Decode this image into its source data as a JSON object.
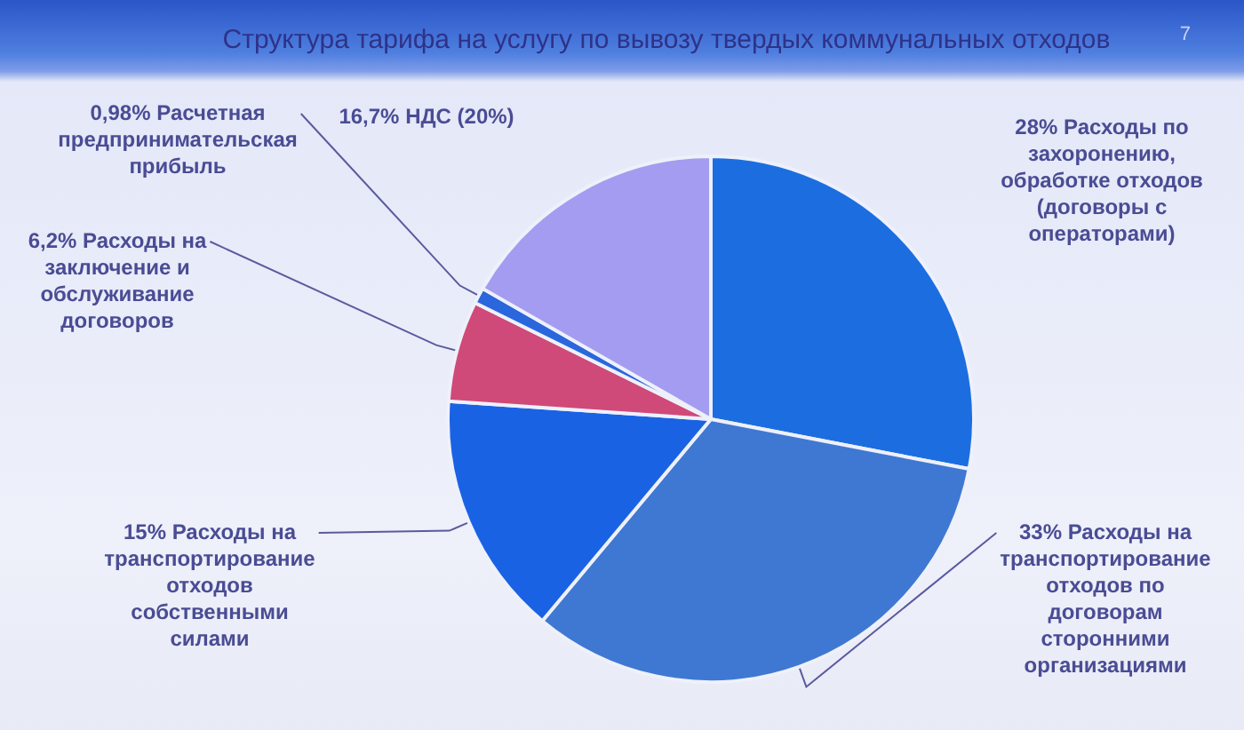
{
  "chart_data": {
    "type": "pie",
    "title": "Структура тарифа на услугу по вывозу твердых коммунальных отходов",
    "categories": [
      "Расходы по захоронению, обработке отходов (договоры с операторами)",
      "Расходы на транспортирование отходов по договорам сторонними организациями",
      "Расходы на транспортирование отходов собственными силами",
      "Расходы на заключение и обслуживание договоров",
      "Расчетная предпринимательская прибыль",
      "НДС (20%)"
    ],
    "values": [
      28,
      33,
      15,
      6.2,
      0.98,
      16.7
    ],
    "value_labels": [
      "28%",
      "33%",
      "15%",
      "6,2%",
      "0,98%",
      "16,7%"
    ],
    "colors": [
      "#1c6ee0",
      "#3f78d2",
      "#1a62e4",
      "#cf4a78",
      "#2a66dc",
      "#a49cf0"
    ],
    "annotations": [
      "7"
    ],
    "legend": false
  }
}
